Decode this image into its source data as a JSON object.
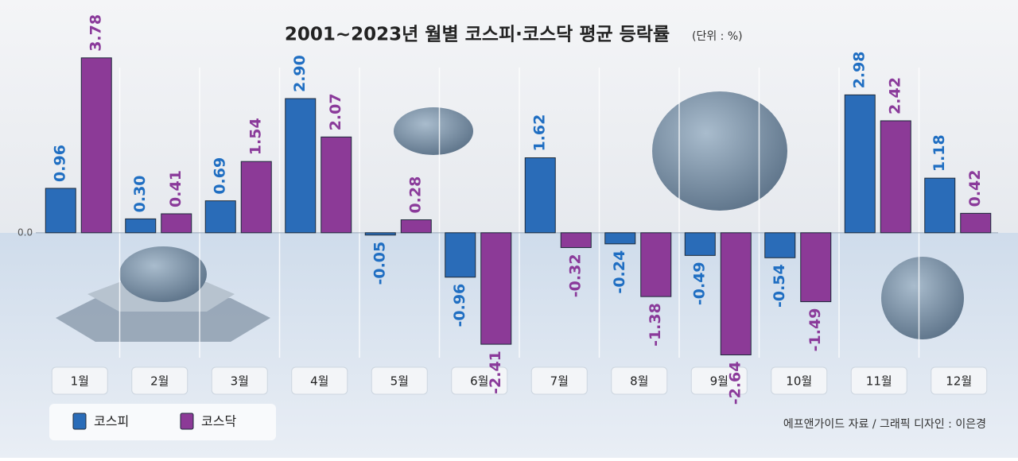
{
  "chart_data": {
    "type": "bar",
    "title": "2001~2023년 월별 코스피·코스닥 평균 등락률",
    "subtitle": "(단위 : %)",
    "source": "에프앤가이드 자료 / 그래픽 디자인 : 이은경",
    "categories": [
      "1월",
      "2월",
      "3월",
      "4월",
      "5월",
      "6월",
      "7월",
      "8월",
      "9월",
      "10월",
      "11월",
      "12월"
    ],
    "series": [
      {
        "name": "코스피",
        "color": "#2a6cb8",
        "values": [
          0.96,
          0.3,
          0.69,
          2.9,
          -0.05,
          -0.96,
          1.62,
          -0.24,
          -0.49,
          -0.54,
          2.98,
          1.18
        ],
        "value_labels": [
          "0.96",
          "0.30",
          "0.69",
          "2.90",
          "-0.05",
          "-0.96",
          "1.62",
          "-0.24",
          "-0.49",
          "-0.54",
          "2.98",
          "1.18"
        ]
      },
      {
        "name": "코스닥",
        "color": "#8c3a97",
        "values": [
          3.78,
          0.41,
          1.54,
          2.07,
          0.28,
          -2.41,
          -0.32,
          -1.38,
          -2.64,
          -1.49,
          2.42,
          0.42
        ],
        "value_labels": [
          "3.78",
          "0.41",
          "1.54",
          "2.07",
          "0.28",
          "-2.41",
          "-0.32",
          "-1.38",
          "-2.64",
          "-1.49",
          "2.42",
          "0.42"
        ]
      }
    ],
    "ylim": [
      -2.7,
      4.0
    ],
    "yticks": [
      {
        "value": 0,
        "label": "0.0"
      }
    ]
  }
}
